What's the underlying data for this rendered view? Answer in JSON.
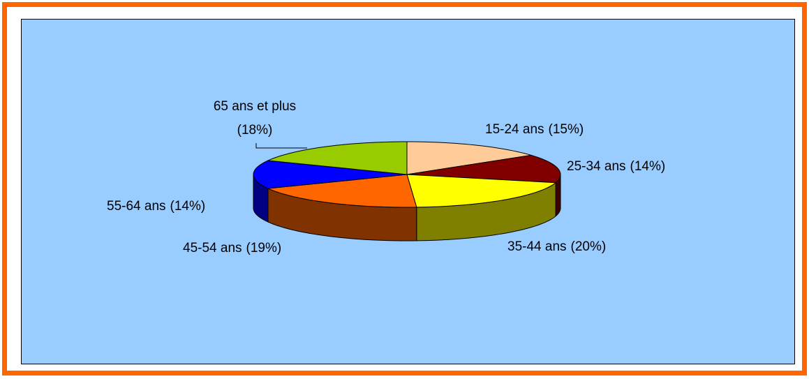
{
  "chart_data": {
    "type": "pie",
    "categories": [
      "15-24 ans",
      "25-34 ans",
      "35-44 ans",
      "45-54 ans",
      "55-64 ans",
      "65 ans et plus"
    ],
    "values": [
      15,
      14,
      20,
      19,
      14,
      18
    ],
    "value_labels": [
      "(15%)",
      "(14%)",
      "(20%)",
      "(19%)",
      "(14%)",
      "(18%)"
    ],
    "colors": [
      "#FFCC99",
      "#800000",
      "#FFFF00",
      "#FF6600",
      "#0000FF",
      "#99CC00"
    ]
  }
}
